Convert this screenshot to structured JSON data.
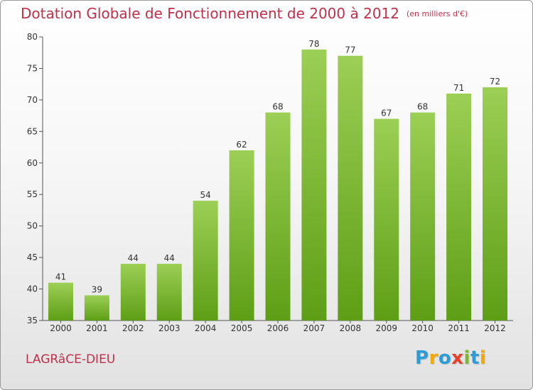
{
  "title": "Dotation Globale de Fonctionnement de 2000 à 2012",
  "unit": "(en milliers d'€)",
  "commune": "LAGRâCE-DIEU",
  "logo_text": "Proxiti",
  "colors": {
    "title": "#c0304a",
    "bar_top": "#9ccf55",
    "bar_bottom": "#5e9e16",
    "logo": [
      "#2f9bd6",
      "#f2a900",
      "#2f9bd6",
      "#e8402e",
      "#7bb82d",
      "#2f9bd6",
      "#f2a900"
    ]
  },
  "chart_data": {
    "type": "bar",
    "title": "Dotation Globale de Fonctionnement de 2000 à 2012",
    "subtitle": "(en milliers d'€)",
    "xlabel": "",
    "ylabel": "",
    "categories": [
      "2000",
      "2001",
      "2002",
      "2003",
      "2004",
      "2005",
      "2006",
      "2007",
      "2008",
      "2009",
      "2010",
      "2011",
      "2012"
    ],
    "values": [
      41,
      39,
      44,
      44,
      54,
      62,
      68,
      78,
      77,
      67,
      68,
      71,
      72
    ],
    "ylim": [
      35,
      80
    ],
    "yticks": [
      35,
      40,
      45,
      50,
      55,
      60,
      65,
      70,
      75,
      80
    ],
    "grid": false,
    "legend": "none"
  }
}
